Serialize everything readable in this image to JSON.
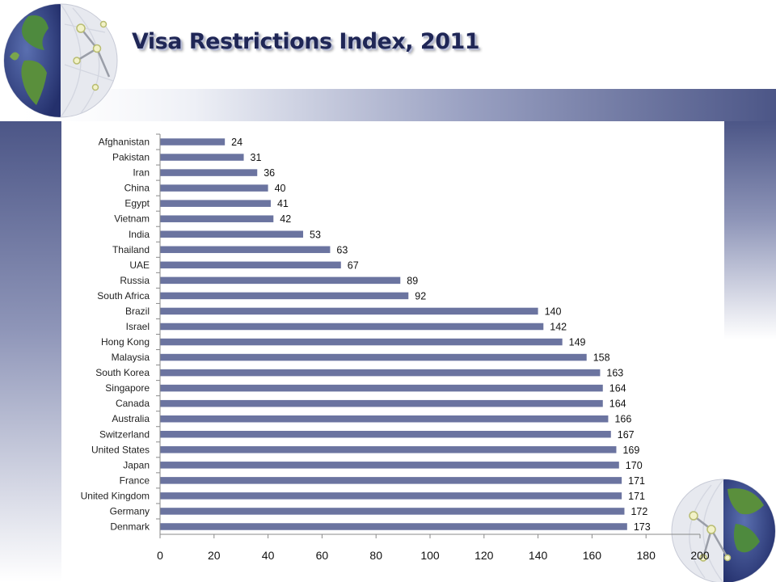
{
  "slide": {
    "title": "Visa Restrictions Index, 2011"
  },
  "colors": {
    "bar": "#6b74a0",
    "band_dark": "#4c5687",
    "axis": "#8a8a8a"
  },
  "icons": {
    "top_left": "globe-network-icon",
    "bottom_right": "globe-network-icon"
  },
  "chart_data": {
    "type": "bar",
    "orientation": "horizontal",
    "title": "",
    "xlabel": "",
    "ylabel": "",
    "categories": [
      "Afghanistan",
      "Pakistan",
      "Iran",
      "China",
      "Egypt",
      "Vietnam",
      "India",
      "Thailand",
      "UAE",
      "Russia",
      "South Africa",
      "Brazil",
      "Israel",
      "Hong Kong",
      "Malaysia",
      "South Korea",
      "Singapore",
      "Canada",
      "Australia",
      "Switzerland",
      "United States",
      "Japan",
      "France",
      "United Kingdom",
      "Germany",
      "Denmark"
    ],
    "values": [
      24,
      31,
      36,
      40,
      41,
      42,
      53,
      63,
      67,
      89,
      92,
      140,
      142,
      149,
      158,
      163,
      164,
      164,
      166,
      167,
      169,
      170,
      171,
      171,
      172,
      173
    ],
    "xlim": [
      0,
      200
    ],
    "xticks": [
      0,
      20,
      40,
      60,
      80,
      100,
      120,
      140,
      160,
      180,
      200
    ],
    "data_labels": true,
    "grid": false,
    "legend": "none"
  }
}
